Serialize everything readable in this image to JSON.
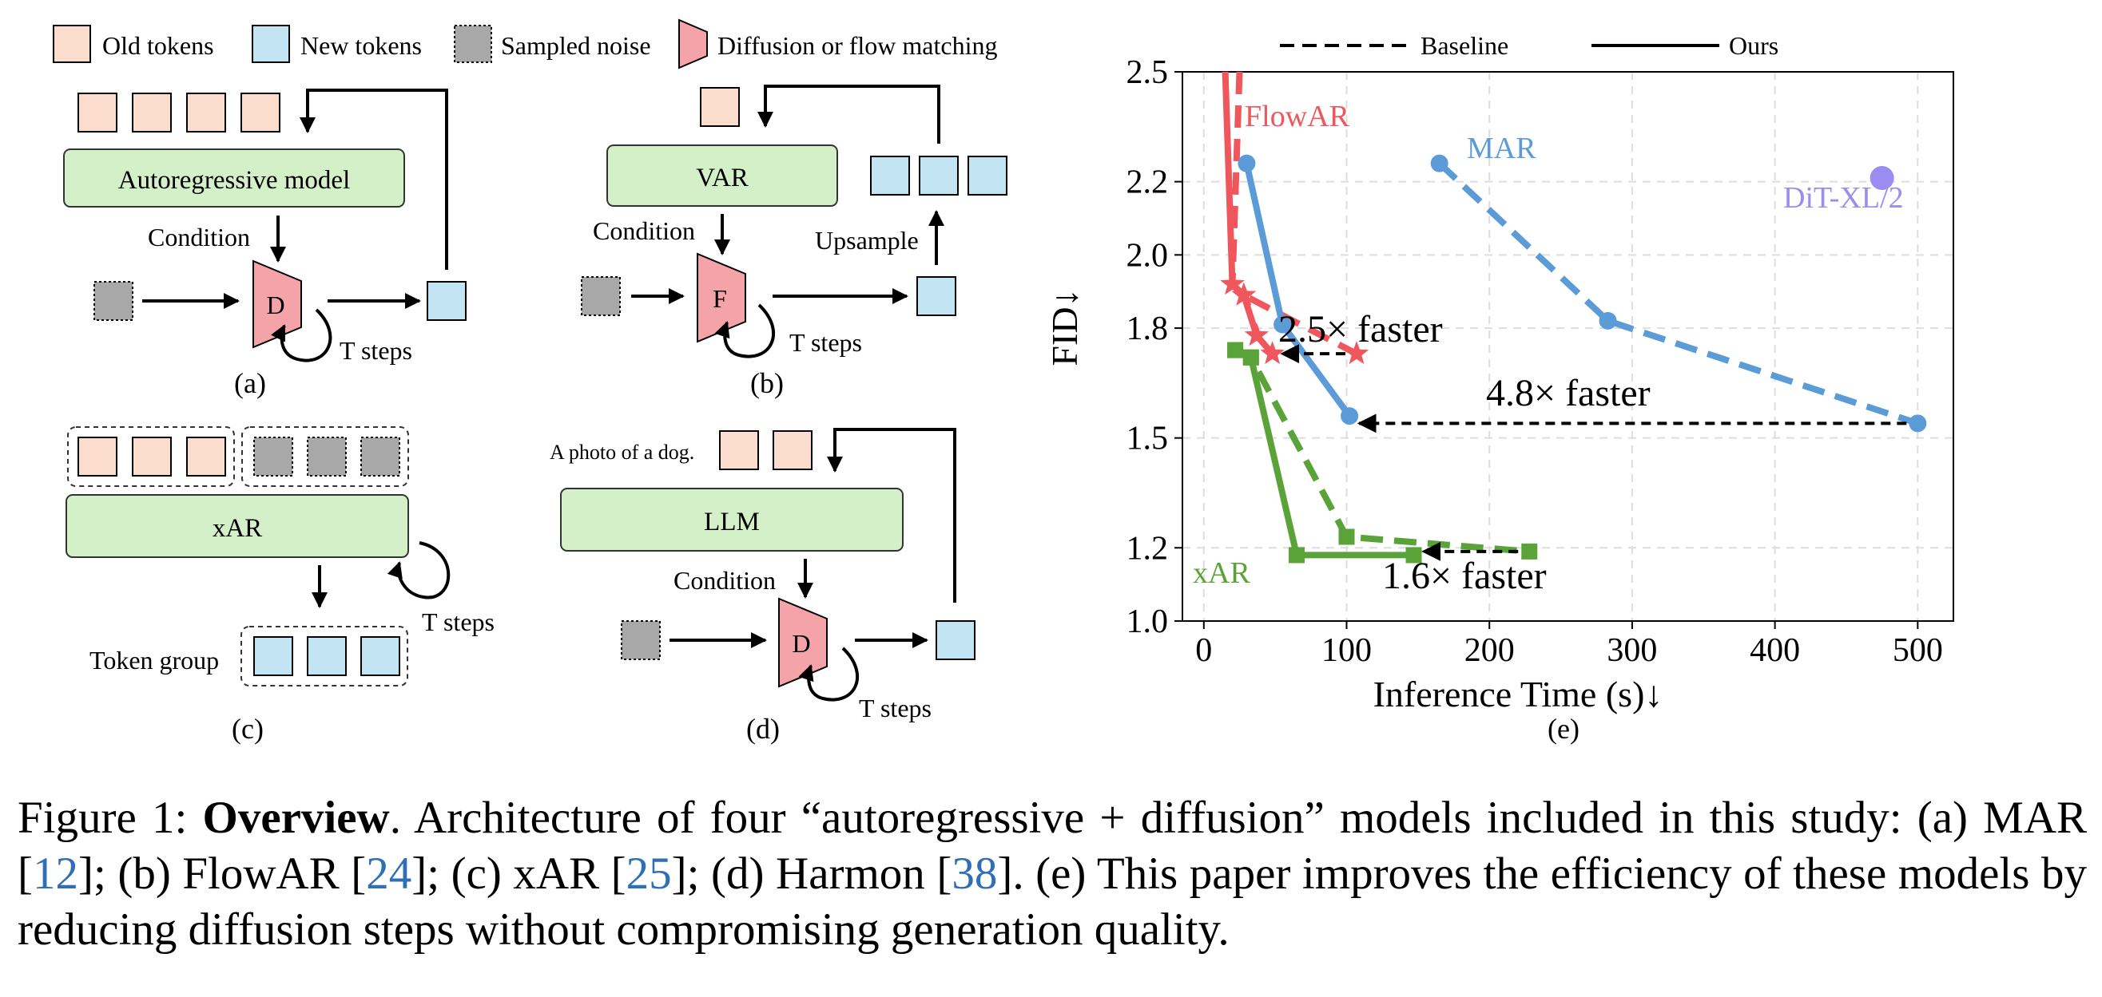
{
  "legend": {
    "old": "Old tokens",
    "new": "New tokens",
    "noise": "Sampled noise",
    "diff": "Diffusion or flow matching"
  },
  "panel_a": {
    "model": "Autoregressive model",
    "condition": "Condition",
    "block": "D",
    "steps": "T steps",
    "label": "(a)"
  },
  "panel_b": {
    "model": "VAR",
    "condition": "Condition",
    "block": "F",
    "steps": "T steps",
    "upsample": "Upsample",
    "label": "(b)"
  },
  "panel_c": {
    "model": "xAR",
    "steps": "T steps",
    "group": "Token group",
    "label": "(c)"
  },
  "panel_d": {
    "prompt": "A photo of a dog.",
    "model": "LLM",
    "condition": "Condition",
    "block": "D",
    "steps": "T steps",
    "label": "(d)"
  },
  "chart_data": {
    "type": "line",
    "label": "(e)",
    "xlabel": "Inference Time (s)↓",
    "ylabel": "FID↓",
    "xlim": [
      -15,
      525
    ],
    "ylim": [
      1.0,
      2.5
    ],
    "xticks": [
      "0",
      "100",
      "200",
      "300",
      "400",
      "500"
    ],
    "yticks": [
      "1.0",
      "1.2",
      "1.5",
      "1.8",
      "2.0",
      "2.2",
      "2.5"
    ],
    "ytick_values": [
      1.0,
      1.2,
      1.5,
      1.8,
      2.0,
      2.2,
      2.5
    ],
    "grid": true,
    "legend_position": "top",
    "legend": {
      "baseline": "Baseline",
      "ours": "Ours"
    },
    "series": [
      {
        "name": "FlowAR",
        "color": "#f0575c",
        "marker": "star",
        "baseline": [
          [
            25,
            2.5
          ],
          [
            20,
            1.92
          ],
          [
            28,
            1.89
          ],
          [
            107,
            1.73
          ]
        ],
        "ours": [
          [
            15,
            2.5
          ],
          [
            20,
            1.92
          ],
          [
            28,
            1.89
          ],
          [
            37,
            1.78
          ],
          [
            48,
            1.73
          ]
        ]
      },
      {
        "name": "MAR",
        "color": "#5b9bd8",
        "marker": "circle",
        "baseline": [
          [
            165,
            2.25
          ],
          [
            283,
            1.82
          ],
          [
            500,
            1.54
          ]
        ],
        "ours": [
          [
            30,
            2.25
          ],
          [
            55,
            1.81
          ],
          [
            102,
            1.56
          ]
        ]
      },
      {
        "name": "xAR",
        "color": "#5aa339",
        "marker": "square",
        "baseline": [
          [
            22,
            1.74
          ],
          [
            33,
            1.72
          ],
          [
            100,
            1.23
          ],
          [
            228,
            1.19
          ]
        ],
        "ours": [
          [
            22,
            1.74
          ],
          [
            33,
            1.72
          ],
          [
            65,
            1.18
          ],
          [
            147,
            1.18
          ]
        ]
      },
      {
        "name": "DiT-XL/2",
        "color": "#9b8cf2",
        "marker": "dot",
        "point": [
          475,
          2.21
        ]
      }
    ],
    "annotations": [
      {
        "text": "2.5× faster"
      },
      {
        "text": "4.8× faster"
      },
      {
        "text": "1.6× faster"
      }
    ]
  },
  "caption": {
    "prefix": "Figure 1: ",
    "bold": "Overview",
    "t1": ".  Architecture of four “autoregressive + diffusion” models included in this study: (a) MAR [",
    "c1": "12",
    "t2": "]; (b) FlowAR [",
    "c2": "24",
    "t3": "]; (c) xAR [",
    "c3": "25",
    "t4": "]; (d) Harmon [",
    "c4": "38",
    "t5": "]. (e) This paper improves the efficiency of these models by reducing diffusion steps without compromising generation quality."
  }
}
